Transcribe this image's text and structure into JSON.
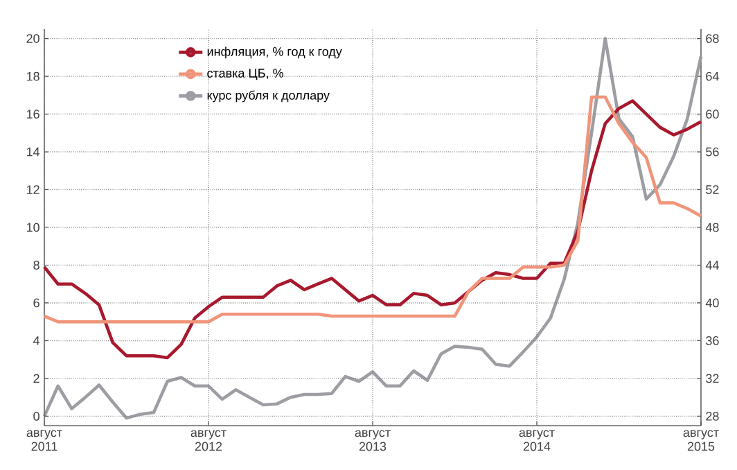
{
  "chart_data": {
    "type": "line",
    "x": [
      "2011-08",
      "2011-09",
      "2011-10",
      "2011-11",
      "2011-12",
      "2012-01",
      "2012-02",
      "2012-03",
      "2012-04",
      "2012-05",
      "2012-06",
      "2012-07",
      "2012-08",
      "2012-09",
      "2012-10",
      "2012-11",
      "2012-12",
      "2013-01",
      "2013-02",
      "2013-03",
      "2013-04",
      "2013-05",
      "2013-06",
      "2013-07",
      "2013-08",
      "2013-09",
      "2013-10",
      "2013-11",
      "2013-12",
      "2014-01",
      "2014-02",
      "2014-03",
      "2014-04",
      "2014-05",
      "2014-06",
      "2014-07",
      "2014-08",
      "2014-09",
      "2014-10",
      "2014-11",
      "2014-12",
      "2015-01",
      "2015-02",
      "2015-03",
      "2015-04",
      "2015-05",
      "2015-06",
      "2015-07",
      "2015-08"
    ],
    "series": [
      {
        "name": "инфляция, % год к году",
        "color": "#a8192e",
        "values": [
          7.9,
          7.0,
          7.0,
          6.5,
          5.9,
          3.9,
          3.2,
          3.2,
          3.2,
          3.1,
          3.8,
          5.2,
          5.8,
          6.3,
          6.3,
          6.3,
          6.3,
          6.9,
          7.2,
          6.7,
          7.0,
          7.3,
          6.7,
          6.1,
          6.4,
          5.9,
          5.9,
          6.5,
          6.4,
          5.9,
          6.0,
          6.6,
          7.2,
          7.6,
          7.5,
          7.3,
          7.3,
          8.1,
          8.1,
          9.8,
          13.0,
          15.5,
          16.3,
          16.7,
          16.0,
          15.3,
          14.9,
          15.2,
          15.6
        ]
      },
      {
        "name": "ставка ЦБ, %",
        "color": "#f0947a",
        "values": [
          5.3,
          5.0,
          5.0,
          5.0,
          5.0,
          5.0,
          5.0,
          5.0,
          5.0,
          5.0,
          5.0,
          5.0,
          5.0,
          5.4,
          5.4,
          5.4,
          5.4,
          5.4,
          5.4,
          5.4,
          5.4,
          5.3,
          5.3,
          5.3,
          5.3,
          5.3,
          5.3,
          5.3,
          5.3,
          5.3,
          5.3,
          6.6,
          7.3,
          7.3,
          7.3,
          7.9,
          7.9,
          7.9,
          8.0,
          9.3,
          16.9,
          16.9,
          15.5,
          14.5,
          13.7,
          11.3,
          11.3,
          11.0,
          10.6
        ]
      },
      {
        "name": "курс рубля к доллару",
        "color": "#9d9ea3",
        "axis": "y2",
        "values": [
          28.0,
          31.2,
          28.8,
          30.0,
          31.3,
          29.5,
          27.8,
          28.2,
          28.4,
          31.7,
          32.1,
          31.2,
          31.2,
          29.8,
          30.8,
          30.0,
          29.2,
          29.3,
          30.0,
          30.3,
          30.3,
          30.4,
          32.2,
          31.7,
          32.7,
          31.2,
          31.2,
          32.8,
          31.8,
          34.6,
          35.4,
          35.3,
          35.1,
          33.5,
          33.3,
          34.8,
          36.4,
          38.4,
          42.5,
          48.5,
          58.0,
          68.0,
          59.5,
          57.6,
          51.0,
          52.5,
          55.5,
          59.5,
          66.1
        ]
      }
    ],
    "xlim": [
      "2011-08",
      "2015-08"
    ],
    "xticks": [
      {
        "value": "2011-08",
        "label": "август 2011"
      },
      {
        "value": "2012-08",
        "label": "август 2012"
      },
      {
        "value": "2013-08",
        "label": "август 2013"
      },
      {
        "value": "2014-08",
        "label": "август 2014"
      },
      {
        "value": "2015-08",
        "label": "август 2015"
      }
    ],
    "ylim": [
      -0.5,
      20.5
    ],
    "yticks": [
      0,
      2,
      4,
      6,
      8,
      10,
      12,
      14,
      16,
      18,
      20
    ],
    "y2lim": [
      27,
      69
    ],
    "y2ticks": [
      28,
      32,
      36,
      40,
      44,
      48,
      52,
      56,
      60,
      64,
      68
    ],
    "grid": true,
    "legend": "top"
  }
}
